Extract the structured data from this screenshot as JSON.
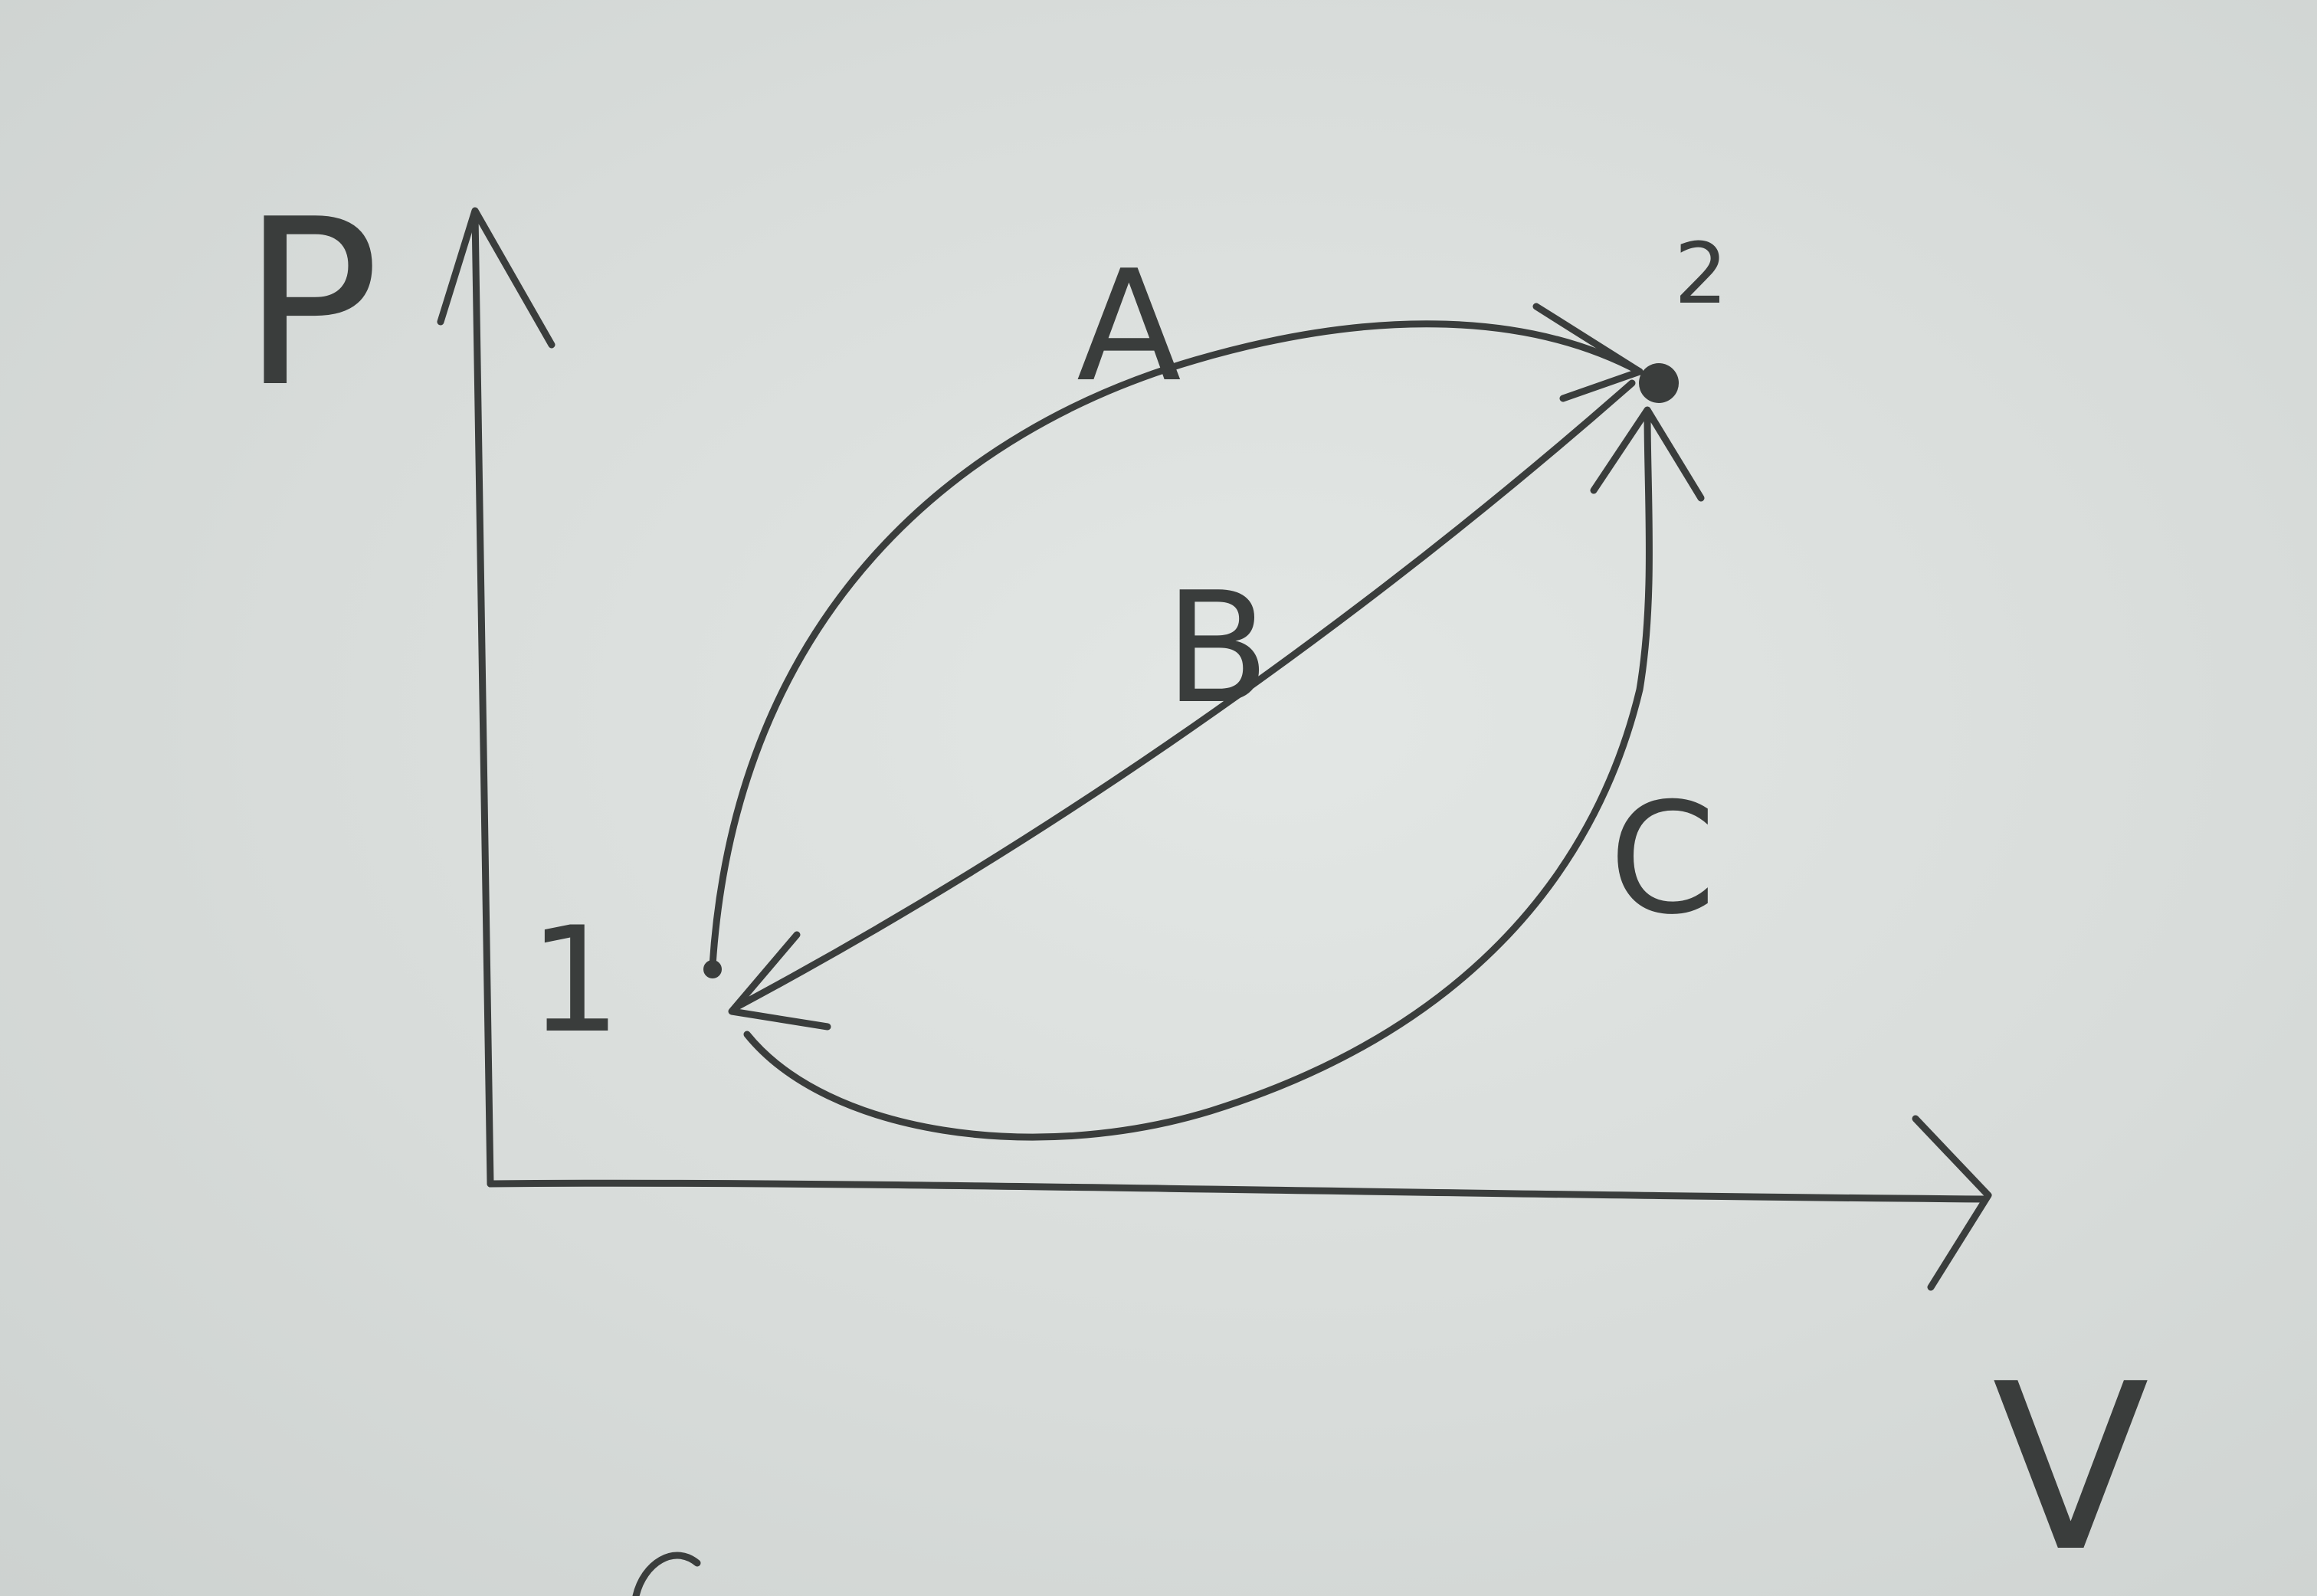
{
  "axes": {
    "y_label": "P",
    "x_label": "V"
  },
  "points": [
    {
      "id": "1",
      "label": "1"
    },
    {
      "id": "2",
      "label": "2"
    }
  ],
  "paths": [
    {
      "id": "A",
      "label": "A",
      "from": "1",
      "to": "2"
    },
    {
      "id": "B",
      "label": "B",
      "from": "2",
      "to": "1"
    },
    {
      "id": "C",
      "label": "C",
      "from": "1",
      "to": "2"
    }
  ],
  "colors": {
    "paper": "#d8dcda",
    "pencil": "#3a3d3c"
  }
}
